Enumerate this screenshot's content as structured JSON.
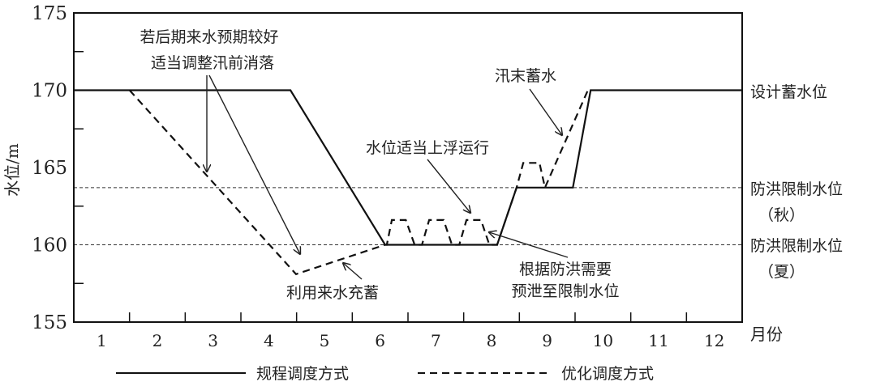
{
  "chart_data": {
    "type": "line",
    "ylabel": "水位/m",
    "xlabel": "月份",
    "xlim": [
      0.5,
      12.5
    ],
    "ylim": [
      155,
      175
    ],
    "x_ticks": [
      "1",
      "2",
      "3",
      "4",
      "5",
      "6",
      "7",
      "8",
      "9",
      "10",
      "11",
      "12"
    ],
    "y_ticks": [
      "155",
      "160",
      "165",
      "170",
      "175"
    ],
    "grid": false,
    "legend_position": "bottom",
    "reference_lines": [
      {
        "value": 170,
        "label": "设计蓄水位",
        "style": "none"
      },
      {
        "value": 163.7,
        "label": "防洪限制水位",
        "sublabel": "（秋）",
        "style": "dashed"
      },
      {
        "value": 160,
        "label": "防洪限制水位",
        "sublabel": "（夏）",
        "style": "dashed"
      }
    ],
    "series": [
      {
        "name": "规程调度方式",
        "style": "solid",
        "points": [
          [
            0.5,
            170
          ],
          [
            4.39,
            170
          ],
          [
            6.09,
            160
          ],
          [
            8.1,
            160
          ],
          [
            8.45,
            163.7
          ],
          [
            9.46,
            163.7
          ],
          [
            9.78,
            170
          ],
          [
            12.5,
            170
          ]
        ]
      },
      {
        "name": "优化调度方式",
        "style": "dashed",
        "points": [
          [
            1.5,
            170
          ],
          [
            4.49,
            158.1
          ],
          [
            6.09,
            160
          ],
          [
            6.12,
            160
          ],
          [
            6.21,
            161.6
          ],
          [
            6.46,
            161.6
          ],
          [
            6.62,
            160
          ],
          [
            6.75,
            160
          ],
          [
            6.88,
            161.6
          ],
          [
            7.14,
            161.6
          ],
          [
            7.29,
            160
          ],
          [
            7.42,
            160
          ],
          [
            7.55,
            161.6
          ],
          [
            7.81,
            161.6
          ],
          [
            7.96,
            160
          ],
          [
            8.1,
            160
          ],
          [
            8.45,
            163.7
          ],
          [
            8.57,
            165.3
          ],
          [
            8.86,
            165.3
          ],
          [
            8.96,
            163.7
          ],
          [
            9.73,
            170
          ]
        ]
      }
    ],
    "annotations": [
      {
        "lines": [
          "若后期来水预期较好",
          "适当调整汛前消落"
        ]
      },
      {
        "lines": [
          "汛末蓄水"
        ]
      },
      {
        "lines": [
          "水位适当上浮运行"
        ]
      },
      {
        "lines": [
          "根据防洪需要",
          "预泄至限制水位"
        ]
      },
      {
        "lines": [
          "利用来水充蓄"
        ]
      }
    ]
  }
}
